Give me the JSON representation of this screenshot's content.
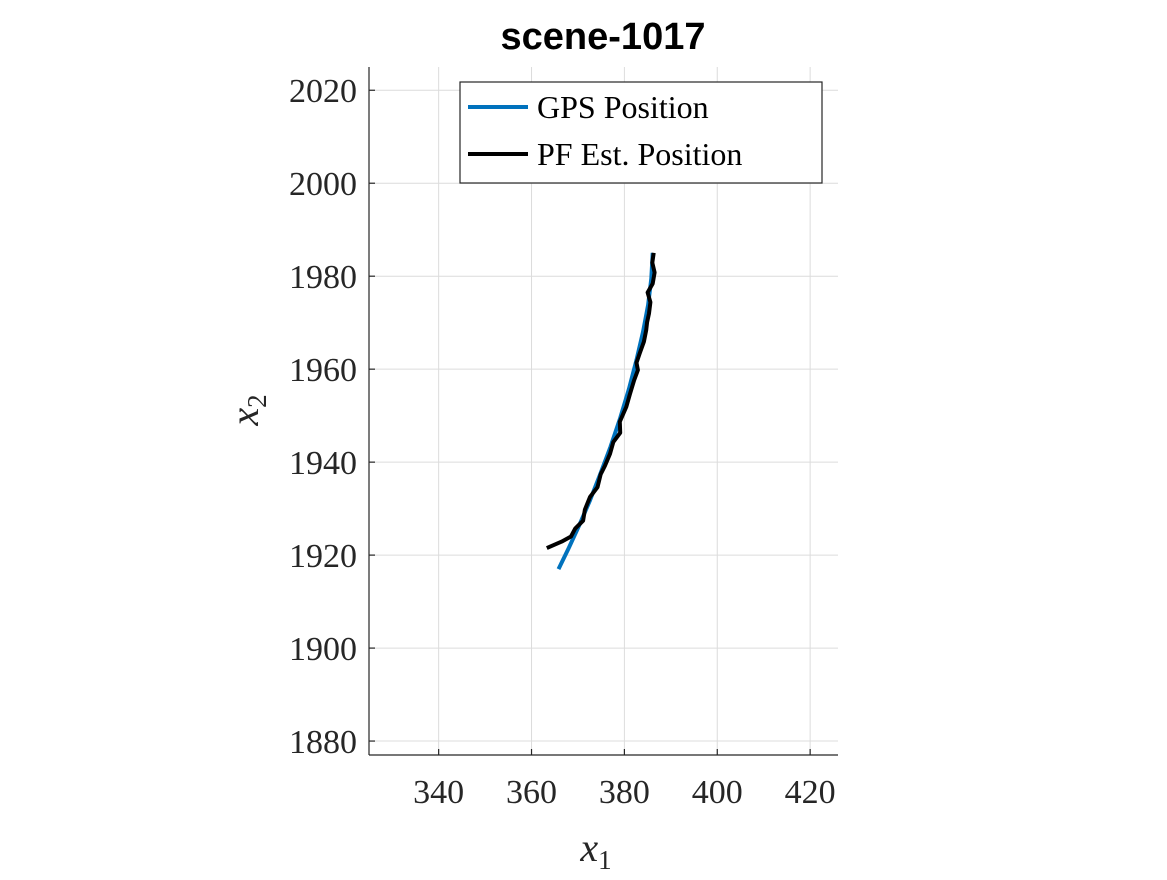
{
  "chart_data": {
    "type": "line",
    "title": "scene-1017",
    "xlabel": {
      "base": "x",
      "sub": "1"
    },
    "ylabel": {
      "base": "x",
      "sub": "2"
    },
    "xlim": [
      325,
      426
    ],
    "ylim": [
      1877,
      2025
    ],
    "xticks": [
      340,
      360,
      380,
      400,
      420
    ],
    "yticks": [
      1880,
      1900,
      1920,
      1940,
      1960,
      1980,
      2000,
      2020
    ],
    "grid": true,
    "legend_position": "top-right",
    "series": [
      {
        "name": "GPS Position",
        "color": "#0072BD",
        "x": [
          365.8,
          368.0,
          370.3,
          372.6,
          374.8,
          377.0,
          379.1,
          381.0,
          382.6,
          384.0,
          385.1,
          385.8,
          386.1
        ],
        "y": [
          1917.0,
          1921.5,
          1926.5,
          1931.8,
          1937.4,
          1943.3,
          1949.5,
          1955.8,
          1962.0,
          1968.0,
          1973.8,
          1979.5,
          1985.0
        ]
      },
      {
        "name": "PF Est. Position",
        "color": "#000000",
        "x": [
          363.3,
          366.5,
          368.5,
          369.4,
          371.1,
          371.5,
          372.6,
          374.2,
          374.9,
          375.8,
          376.9,
          377.6,
          379.1,
          379.0,
          380.4,
          381.2,
          382.1,
          382.9,
          382.6,
          383.3,
          384.2,
          384.7,
          384.9,
          385.3,
          385.6,
          385.0,
          386.1,
          386.5,
          386.0,
          386.3
        ],
        "y": [
          1921.5,
          1922.9,
          1924.0,
          1925.7,
          1927.4,
          1929.8,
          1932.5,
          1934.6,
          1937.4,
          1939.2,
          1941.8,
          1944.3,
          1946.3,
          1948.7,
          1951.9,
          1954.7,
          1957.6,
          1959.8,
          1961.4,
          1963.4,
          1965.9,
          1968.4,
          1970.1,
          1972.0,
          1974.4,
          1976.5,
          1978.4,
          1980.8,
          1982.9,
          1985.0
        ]
      }
    ]
  }
}
